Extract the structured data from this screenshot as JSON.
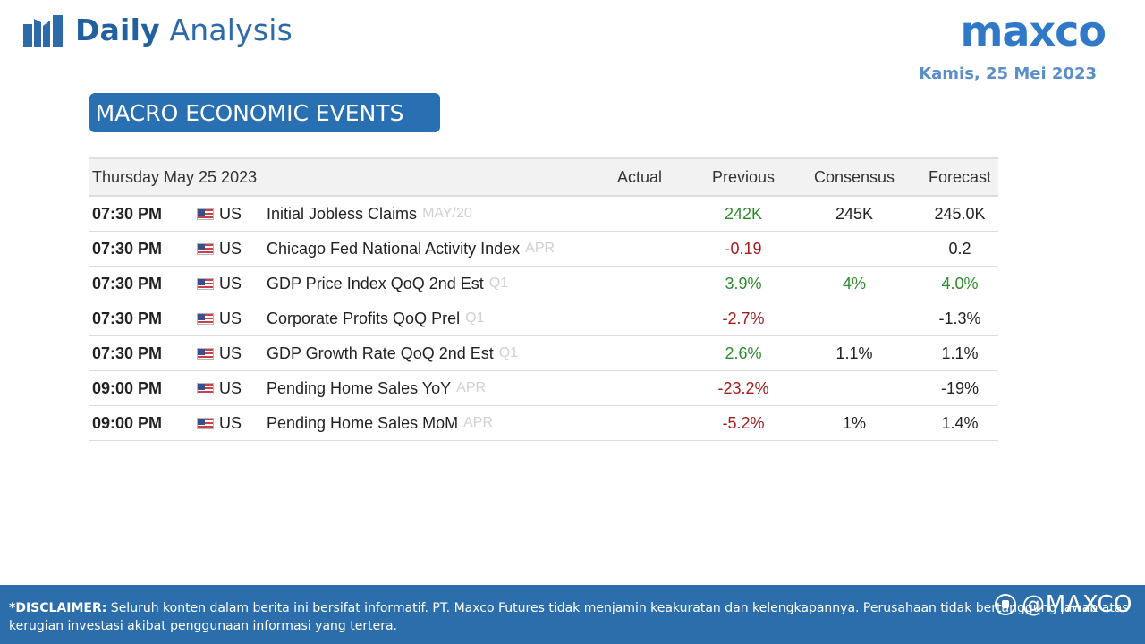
{
  "header": {
    "title_bold": "Daily",
    "title_rest": " Analysis",
    "brand": "maxco",
    "date": "Kamis, 25 Mei 2023"
  },
  "section": {
    "title": "MACRO ECONOMIC EVENTS"
  },
  "table": {
    "columns": {
      "date": "Thursday May 25 2023",
      "actual": "Actual",
      "previous": "Previous",
      "consensus": "Consensus",
      "forecast": "Forecast"
    },
    "rows": [
      {
        "time": "07:30 PM",
        "country": "US",
        "event": "Initial Jobless Claims",
        "period": "MAY/20",
        "actual": "",
        "previous": "242K",
        "previous_trend": "up",
        "consensus": "245K",
        "consensus_trend": "",
        "forecast": "245.0K",
        "forecast_trend": ""
      },
      {
        "time": "07:30 PM",
        "country": "US",
        "event": "Chicago Fed National Activity Index",
        "period": "APR",
        "actual": "",
        "previous": "-0.19",
        "previous_trend": "down",
        "consensus": "",
        "consensus_trend": "",
        "forecast": "0.2",
        "forecast_trend": ""
      },
      {
        "time": "07:30 PM",
        "country": "US",
        "event": "GDP Price Index QoQ 2nd Est",
        "period": "Q1",
        "actual": "",
        "previous": "3.9%",
        "previous_trend": "up",
        "consensus": "4%",
        "consensus_trend": "up",
        "forecast": "4.0%",
        "forecast_trend": "up"
      },
      {
        "time": "07:30 PM",
        "country": "US",
        "event": "Corporate Profits QoQ Prel",
        "period": "Q1",
        "actual": "",
        "previous": "-2.7%",
        "previous_trend": "down",
        "consensus": "",
        "consensus_trend": "",
        "forecast": "-1.3%",
        "forecast_trend": ""
      },
      {
        "time": "07:30 PM",
        "country": "US",
        "event": "GDP Growth Rate QoQ 2nd Est",
        "period": "Q1",
        "actual": "",
        "previous": "2.6%",
        "previous_trend": "up",
        "consensus": "1.1%",
        "consensus_trend": "",
        "forecast": "1.1%",
        "forecast_trend": ""
      },
      {
        "time": "09:00 PM",
        "country": "US",
        "event": "Pending Home Sales YoY",
        "period": "APR",
        "actual": "",
        "previous": "-23.2%",
        "previous_trend": "down",
        "consensus": "",
        "consensus_trend": "",
        "forecast": "-19%",
        "forecast_trend": ""
      },
      {
        "time": "09:00 PM",
        "country": "US",
        "event": "Pending Home Sales MoM",
        "period": "APR",
        "actual": "",
        "previous": "-5.2%",
        "previous_trend": "down",
        "consensus": "1%",
        "consensus_trend": "",
        "forecast": "1.4%",
        "forecast_trend": ""
      }
    ]
  },
  "footer": {
    "disclaimer_label": "*DISCLAIMER:",
    "disclaimer_text": " Seluruh konten dalam berita ini bersifat informatif. PT. Maxco Futures tidak menjamin keakuratan dan kelengkapannya. Perusahaan tidak bertanggung jawab atas kerugian investasi akibat penggunaan informasi yang tertera.",
    "social_handle": "@MAXCO"
  },
  "colors": {
    "brand_blue": "#2970b3",
    "footer_blue": "#2b6eab",
    "positive": "#2e8b2e",
    "negative": "#a51c1c"
  },
  "icons": [
    "bar-chart-logo-icon",
    "us-flag-icon",
    "social-media-icon"
  ]
}
